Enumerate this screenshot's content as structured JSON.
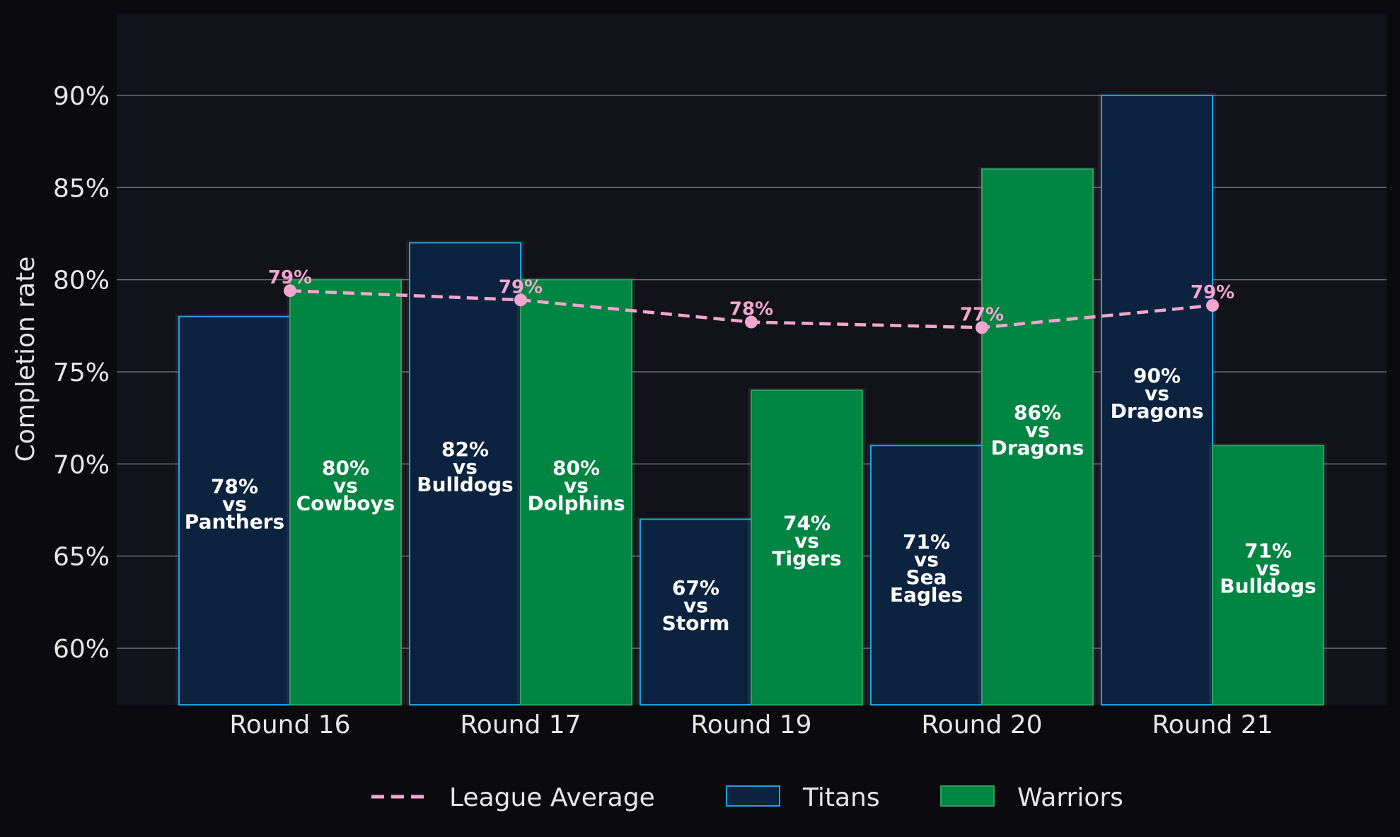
{
  "chart_data": {
    "type": "bar",
    "categories": [
      "Round 16",
      "Round 17",
      "Round 19",
      "Round 20",
      "Round 21"
    ],
    "series": [
      {
        "name": "Titans",
        "values": [
          78,
          82,
          67,
          71,
          90
        ],
        "labels": [
          [
            "78%",
            "vs",
            "Panthers"
          ],
          [
            "82%",
            "vs",
            "Bulldogs"
          ],
          [
            "67%",
            "vs",
            "Storm"
          ],
          [
            "71%",
            "vs",
            "Sea",
            "Eagles"
          ],
          [
            "90%",
            "vs",
            "Dragons"
          ]
        ],
        "color": "#0c2340",
        "edge_color": "#1ea3e0"
      },
      {
        "name": "Warriors",
        "values": [
          80,
          80,
          74,
          86,
          71
        ],
        "labels": [
          [
            "80%",
            "vs",
            "Cowboys"
          ],
          [
            "80%",
            "vs",
            "Dolphins"
          ],
          [
            "74%",
            "vs",
            "Tigers"
          ],
          [
            "86%",
            "vs",
            "Dragons"
          ],
          [
            "71%",
            "vs",
            "Bulldogs"
          ]
        ],
        "color": "#008542",
        "edge_color": "#2e9e5e"
      }
    ],
    "line_series": {
      "name": "League Average",
      "values": [
        79.4,
        78.9,
        77.7,
        77.4,
        78.6
      ],
      "labels": [
        "79%",
        "79%",
        "78%",
        "77%",
        "79%"
      ],
      "color": "#f4a6cf",
      "style": "dashed"
    },
    "ylabel": "Completion rate",
    "ylim": [
      57,
      94.5
    ],
    "yticks": [
      60,
      65,
      70,
      75,
      80,
      85,
      90
    ],
    "ytick_labels": [
      "60%",
      "65%",
      "70%",
      "75%",
      "80%",
      "85%",
      "90%"
    ],
    "grid": "horizontal",
    "legend_position": "bottom-center",
    "legend": [
      "League Average",
      "Titans",
      "Warriors"
    ],
    "background": "#12131a",
    "figure_background": "#0b0b0f"
  }
}
